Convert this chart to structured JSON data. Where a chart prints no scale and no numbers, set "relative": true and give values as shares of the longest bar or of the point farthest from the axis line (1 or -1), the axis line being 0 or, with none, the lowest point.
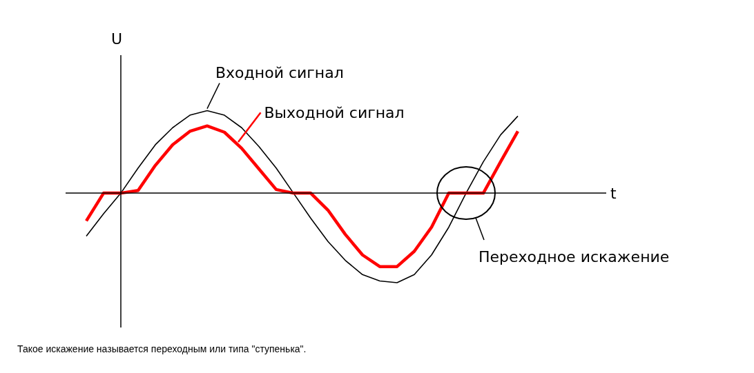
{
  "chart_data": {
    "type": "line",
    "relative": true,
    "xlabel": "t",
    "ylabel": "U",
    "marker": "none",
    "categories": [
      null,
      null,
      null,
      null,
      null,
      null,
      null,
      null,
      null,
      null,
      null,
      null,
      null,
      null,
      null,
      null,
      null,
      null,
      null,
      null,
      null,
      null,
      null,
      null,
      null,
      null,
      null,
      null
    ],
    "series": [
      {
        "name": "Входной сигнал",
        "color": "#000000",
        "values": [
          null,
          -0.48,
          -0.23,
          0,
          0.28,
          0.54,
          0.73,
          0.87,
          0.92,
          0.87,
          0.73,
          0.52,
          0.28,
          0,
          -0.28,
          -0.54,
          -0.75,
          -0.91,
          -0.98,
          -1,
          -0.91,
          -0.69,
          -0.38,
          0,
          0.35,
          0.65,
          0.86,
          null
        ]
      },
      {
        "name": "Выходной сигнал",
        "color": "#ff0000",
        "values": [
          null,
          -0.31,
          0,
          0,
          0.03,
          0.31,
          0.54,
          0.69,
          0.75,
          0.68,
          0.5,
          0.27,
          0.04,
          0,
          0,
          -0.19,
          -0.46,
          -0.69,
          -0.82,
          -0.82,
          -0.65,
          -0.38,
          0,
          0,
          0,
          0.35,
          0.69,
          null
        ]
      }
    ],
    "annotations": [
      "Переходное искажение",
      "Такое искажение называется переходным или типа \"ступенька\"."
    ]
  }
}
